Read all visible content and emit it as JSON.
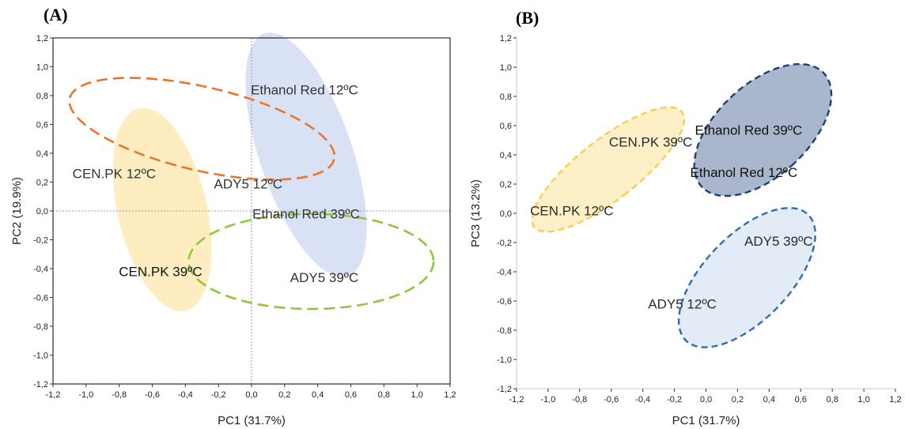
{
  "chart_data": [
    {
      "type": "scatter",
      "panel": "(A)",
      "xlabel": "PC1 (31.7%)",
      "ylabel": "PC2 (19.9%)",
      "xlim": [
        -1.2,
        1.2
      ],
      "ylim": [
        -1.2,
        1.2
      ],
      "xticks": [
        "-1,2",
        "-1,0",
        "-0,8",
        "-0,6",
        "-0,4",
        "-0,2",
        "0,0",
        "0,2",
        "0,4",
        "0,6",
        "0,8",
        "1,0",
        "1,2"
      ],
      "yticks": [
        "-1,2",
        "-1,0",
        "-0,8",
        "-0,6",
        "-0,4",
        "-0,2",
        "0,0",
        "0,2",
        "0,4",
        "0,6",
        "0,8",
        "1,0",
        "1,2"
      ],
      "zero_lines": true,
      "border": "box",
      "points": [
        {
          "label": "Ethanol Red 12ºC",
          "x": 0.32,
          "y": 0.84
        },
        {
          "label": "CEN.PK 12ºC",
          "x": -0.83,
          "y": 0.26
        },
        {
          "label": "ADY5 12ºC",
          "x": -0.02,
          "y": 0.19
        },
        {
          "label": "Ethanol Red 39ºC",
          "x": 0.33,
          "y": -0.02
        },
        {
          "label": "CEN.PK 39ºC",
          "x": -0.55,
          "y": -0.42
        },
        {
          "label": "ADY5 39ºC",
          "x": 0.44,
          "y": -0.46
        }
      ],
      "ellipses": [
        {
          "group": "CEN.PK",
          "style": "filled",
          "color": "#fdedc0",
          "cx": -0.54,
          "cy": 0.01,
          "rx": 0.27,
          "ry": 0.72,
          "angle_deg": -13
        },
        {
          "group": "Ethanol Red",
          "style": "filled",
          "color": "#d9e2f5",
          "cx": 0.33,
          "cy": 0.39,
          "rx": 0.28,
          "ry": 0.89,
          "angle_deg": -19
        },
        {
          "group": "12ºC",
          "style": "dashed",
          "color": "#e8762f",
          "cx": -0.3,
          "cy": 0.57,
          "rx": 0.82,
          "ry": 0.29,
          "angle_deg": 13
        },
        {
          "group": "39ºC",
          "style": "dashed",
          "color": "#8dc63f",
          "cx": 0.36,
          "cy": -0.35,
          "rx": 0.74,
          "ry": 0.33,
          "angle_deg": 0
        }
      ]
    },
    {
      "type": "scatter",
      "panel": "(B)",
      "xlabel": "PC1 (31.7%)",
      "ylabel": "PC3 (13.2%)",
      "xlim": [
        -1.2,
        1.2
      ],
      "ylim": [
        -1.2,
        1.2
      ],
      "xticks": [
        "-1,2",
        "-1,0",
        "-0,8",
        "-0,6",
        "-0,4",
        "-0,2",
        "0,0",
        "0,2",
        "0,4",
        "0,6",
        "0,8",
        "1,0",
        "1,2"
      ],
      "yticks": [
        "-1,2",
        "-1,0",
        "-0,8",
        "-0,6",
        "-0,4",
        "-0,2",
        "0,0",
        "0,2",
        "0,4",
        "0,6",
        "0,8",
        "1,0",
        "1,2"
      ],
      "zero_lines": false,
      "border": "open",
      "points": [
        {
          "label": "Ethanol Red 39ºC",
          "x": 0.27,
          "y": 0.57
        },
        {
          "label": "CEN.PK 39ºC",
          "x": -0.35,
          "y": 0.49
        },
        {
          "label": "Ethanol Red 12ºC",
          "x": 0.24,
          "y": 0.28
        },
        {
          "label": "CEN.PK 12ºC",
          "x": -0.85,
          "y": 0.02
        },
        {
          "label": "ADY5 39ºC",
          "x": 0.46,
          "y": -0.19
        },
        {
          "label": "ADY5 12ºC",
          "x": -0.15,
          "y": -0.62
        }
      ],
      "ellipses": [
        {
          "group": "CEN.PK",
          "style": "filled-dashed",
          "fill": "#fdf0c7",
          "stroke": "#f6cf50",
          "cx": -0.62,
          "cy": 0.3,
          "rx": 0.19,
          "ry": 0.64,
          "angle_deg": 52
        },
        {
          "group": "Ethanol Red",
          "style": "filled-dashed",
          "fill": "#a9b6cc",
          "stroke": "#1e3f73",
          "cx": 0.36,
          "cy": 0.57,
          "rx": 0.29,
          "ry": 0.57,
          "angle_deg": 47
        },
        {
          "group": "ADY5",
          "style": "filled-dashed",
          "fill": "#e2ebf6",
          "stroke": "#2e6db3",
          "cx": 0.26,
          "cy": -0.44,
          "rx": 0.27,
          "ry": 0.6,
          "angle_deg": 44
        }
      ]
    }
  ]
}
